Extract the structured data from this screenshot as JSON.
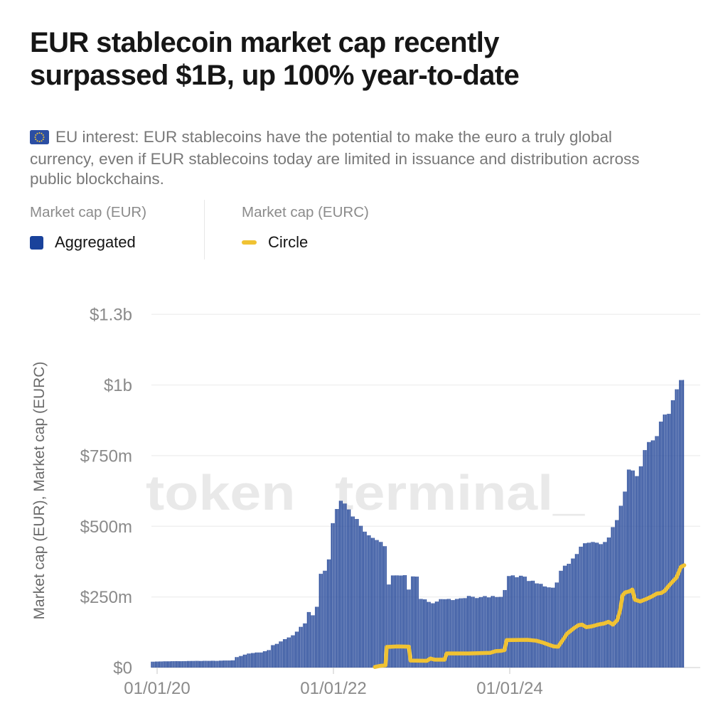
{
  "title": {
    "lines": [
      "EUR stablecoin market cap recently",
      "surpassed $1B, up 100% year-to-date"
    ]
  },
  "subtitle": {
    "icon": "eu-flag",
    "text": "EU interest: EUR stablecoins have the potential to make the euro a truly global currency, even if EUR stablecoins today are limited in issuance and distribution across public blockchains."
  },
  "legend": {
    "groups": [
      {
        "header": "Market cap (EUR)",
        "item": "Aggregated",
        "swatch": "square",
        "color": "#19429b"
      },
      {
        "header": "Market cap (EURC)",
        "item": "Circle",
        "swatch": "dash",
        "color": "#f0c233"
      }
    ]
  },
  "watermark": "token terminal_",
  "colors": {
    "bar": "#2b4d9c",
    "line": "#f0c233",
    "gridline": "#eeeeee",
    "axis": "#d7d7d7",
    "tick_label": "#8a8a8a"
  },
  "chart_data": {
    "type": "bar",
    "y_axis_label": "Market cap (EUR), Market cap (EURC)",
    "unit": "USD",
    "ylim": [
      0,
      1250
    ],
    "y_ticks": [
      {
        "value": 0,
        "label": "$0"
      },
      {
        "value": 250,
        "label": "$250m"
      },
      {
        "value": 500,
        "label": "$500m"
      },
      {
        "value": 750,
        "label": "$750m"
      },
      {
        "value": 1000,
        "label": "$1b"
      },
      {
        "value": 1250,
        "label": "$1.3b"
      }
    ],
    "x_ticks": [
      {
        "year": 2020,
        "label": "01/01/20"
      },
      {
        "year": 2022,
        "label": "01/01/22"
      },
      {
        "year": 2024,
        "label": "01/01/24"
      }
    ],
    "x_range_years": [
      2019.93,
      2025.98
    ],
    "series": [
      {
        "name": "Aggregated",
        "type": "bar",
        "color": "#2b4d9c",
        "unit": "USD millions",
        "points": [
          [
            2019.93,
            21
          ],
          [
            2020.3,
            23
          ],
          [
            2020.7,
            24
          ],
          [
            2020.87,
            26
          ],
          [
            2020.9,
            36
          ],
          [
            2020.98,
            44
          ],
          [
            2021.05,
            50
          ],
          [
            2021.2,
            55
          ],
          [
            2021.28,
            62
          ],
          [
            2021.31,
            78
          ],
          [
            2021.38,
            88
          ],
          [
            2021.44,
            99
          ],
          [
            2021.52,
            108
          ],
          [
            2021.58,
            125
          ],
          [
            2021.62,
            140
          ],
          [
            2021.66,
            152
          ],
          [
            2021.7,
            158
          ],
          [
            2021.72,
            195
          ],
          [
            2021.74,
            204
          ],
          [
            2021.77,
            182
          ],
          [
            2021.8,
            180
          ],
          [
            2021.82,
            230
          ],
          [
            2021.84,
            320
          ],
          [
            2021.87,
            345
          ],
          [
            2021.93,
            348
          ],
          [
            2021.96,
            400
          ],
          [
            2022.0,
            520
          ],
          [
            2022.06,
            572
          ],
          [
            2022.1,
            595
          ],
          [
            2022.14,
            578
          ],
          [
            2022.19,
            554
          ],
          [
            2022.27,
            522
          ],
          [
            2022.35,
            479
          ],
          [
            2022.43,
            466
          ],
          [
            2022.5,
            453
          ],
          [
            2022.56,
            438
          ],
          [
            2022.6,
            430
          ],
          [
            2022.62,
            287
          ],
          [
            2022.66,
            320
          ],
          [
            2022.72,
            325
          ],
          [
            2022.84,
            332
          ],
          [
            2022.86,
            265
          ],
          [
            2022.88,
            320
          ],
          [
            2022.97,
            322
          ],
          [
            2022.99,
            240
          ],
          [
            2023.06,
            237
          ],
          [
            2023.14,
            228
          ],
          [
            2023.2,
            238
          ],
          [
            2023.32,
            243
          ],
          [
            2023.4,
            240
          ],
          [
            2023.55,
            252
          ],
          [
            2023.62,
            247
          ],
          [
            2023.72,
            250
          ],
          [
            2023.82,
            252
          ],
          [
            2023.9,
            250
          ],
          [
            2023.94,
            255
          ],
          [
            2023.96,
            318
          ],
          [
            2024.05,
            325
          ],
          [
            2024.14,
            322
          ],
          [
            2024.22,
            310
          ],
          [
            2024.3,
            300
          ],
          [
            2024.38,
            293
          ],
          [
            2024.44,
            288
          ],
          [
            2024.5,
            280
          ],
          [
            2024.53,
            300
          ],
          [
            2024.56,
            330
          ],
          [
            2024.6,
            352
          ],
          [
            2024.67,
            370
          ],
          [
            2024.75,
            396
          ],
          [
            2024.8,
            420
          ],
          [
            2024.85,
            440
          ],
          [
            2024.9,
            448
          ],
          [
            2024.97,
            443
          ],
          [
            2025.02,
            436
          ],
          [
            2025.08,
            440
          ],
          [
            2025.12,
            459
          ],
          [
            2025.16,
            489
          ],
          [
            2025.21,
            517
          ],
          [
            2025.25,
            554
          ],
          [
            2025.3,
            617
          ],
          [
            2025.34,
            685
          ],
          [
            2025.37,
            710
          ],
          [
            2025.42,
            700
          ],
          [
            2025.45,
            668
          ],
          [
            2025.48,
            715
          ],
          [
            2025.53,
            756
          ],
          [
            2025.56,
            774
          ],
          [
            2025.58,
            791
          ],
          [
            2025.62,
            816
          ],
          [
            2025.64,
            799
          ],
          [
            2025.68,
            841
          ],
          [
            2025.72,
            866
          ],
          [
            2025.77,
            892
          ],
          [
            2025.8,
            907
          ],
          [
            2025.85,
            942
          ],
          [
            2025.89,
            970
          ],
          [
            2025.92,
            995
          ],
          [
            2025.96,
            1012
          ],
          [
            2025.98,
            1022
          ]
        ]
      },
      {
        "name": "Circle",
        "type": "line",
        "color": "#f0c233",
        "unit": "USD millions",
        "points": [
          [
            2022.47,
            2
          ],
          [
            2022.53,
            6
          ],
          [
            2022.59,
            8
          ],
          [
            2022.605,
            73
          ],
          [
            2022.73,
            75
          ],
          [
            2022.855,
            74
          ],
          [
            2022.875,
            25
          ],
          [
            2023.06,
            24
          ],
          [
            2023.1,
            32
          ],
          [
            2023.15,
            28
          ],
          [
            2023.26,
            28
          ],
          [
            2023.285,
            50
          ],
          [
            2023.54,
            50
          ],
          [
            2023.78,
            52
          ],
          [
            2023.84,
            58
          ],
          [
            2023.9,
            59
          ],
          [
            2023.94,
            62
          ],
          [
            2023.965,
            97
          ],
          [
            2024.2,
            98
          ],
          [
            2024.3,
            95
          ],
          [
            2024.38,
            88
          ],
          [
            2024.45,
            80
          ],
          [
            2024.5,
            75
          ],
          [
            2024.55,
            74
          ],
          [
            2024.58,
            88
          ],
          [
            2024.62,
            106
          ],
          [
            2024.65,
            120
          ],
          [
            2024.73,
            140
          ],
          [
            2024.78,
            150
          ],
          [
            2024.82,
            152
          ],
          [
            2024.87,
            143
          ],
          [
            2024.93,
            146
          ],
          [
            2025.0,
            152
          ],
          [
            2025.07,
            156
          ],
          [
            2025.12,
            162
          ],
          [
            2025.17,
            152
          ],
          [
            2025.22,
            168
          ],
          [
            2025.25,
            200
          ],
          [
            2025.28,
            255
          ],
          [
            2025.31,
            266
          ],
          [
            2025.36,
            270
          ],
          [
            2025.39,
            276
          ],
          [
            2025.42,
            240
          ],
          [
            2025.48,
            234
          ],
          [
            2025.53,
            240
          ],
          [
            2025.61,
            251
          ],
          [
            2025.67,
            262
          ],
          [
            2025.72,
            264
          ],
          [
            2025.76,
            272
          ],
          [
            2025.8,
            288
          ],
          [
            2025.85,
            305
          ],
          [
            2025.89,
            318
          ],
          [
            2025.92,
            340
          ],
          [
            2025.94,
            356
          ],
          [
            2025.98,
            362
          ]
        ]
      }
    ]
  }
}
